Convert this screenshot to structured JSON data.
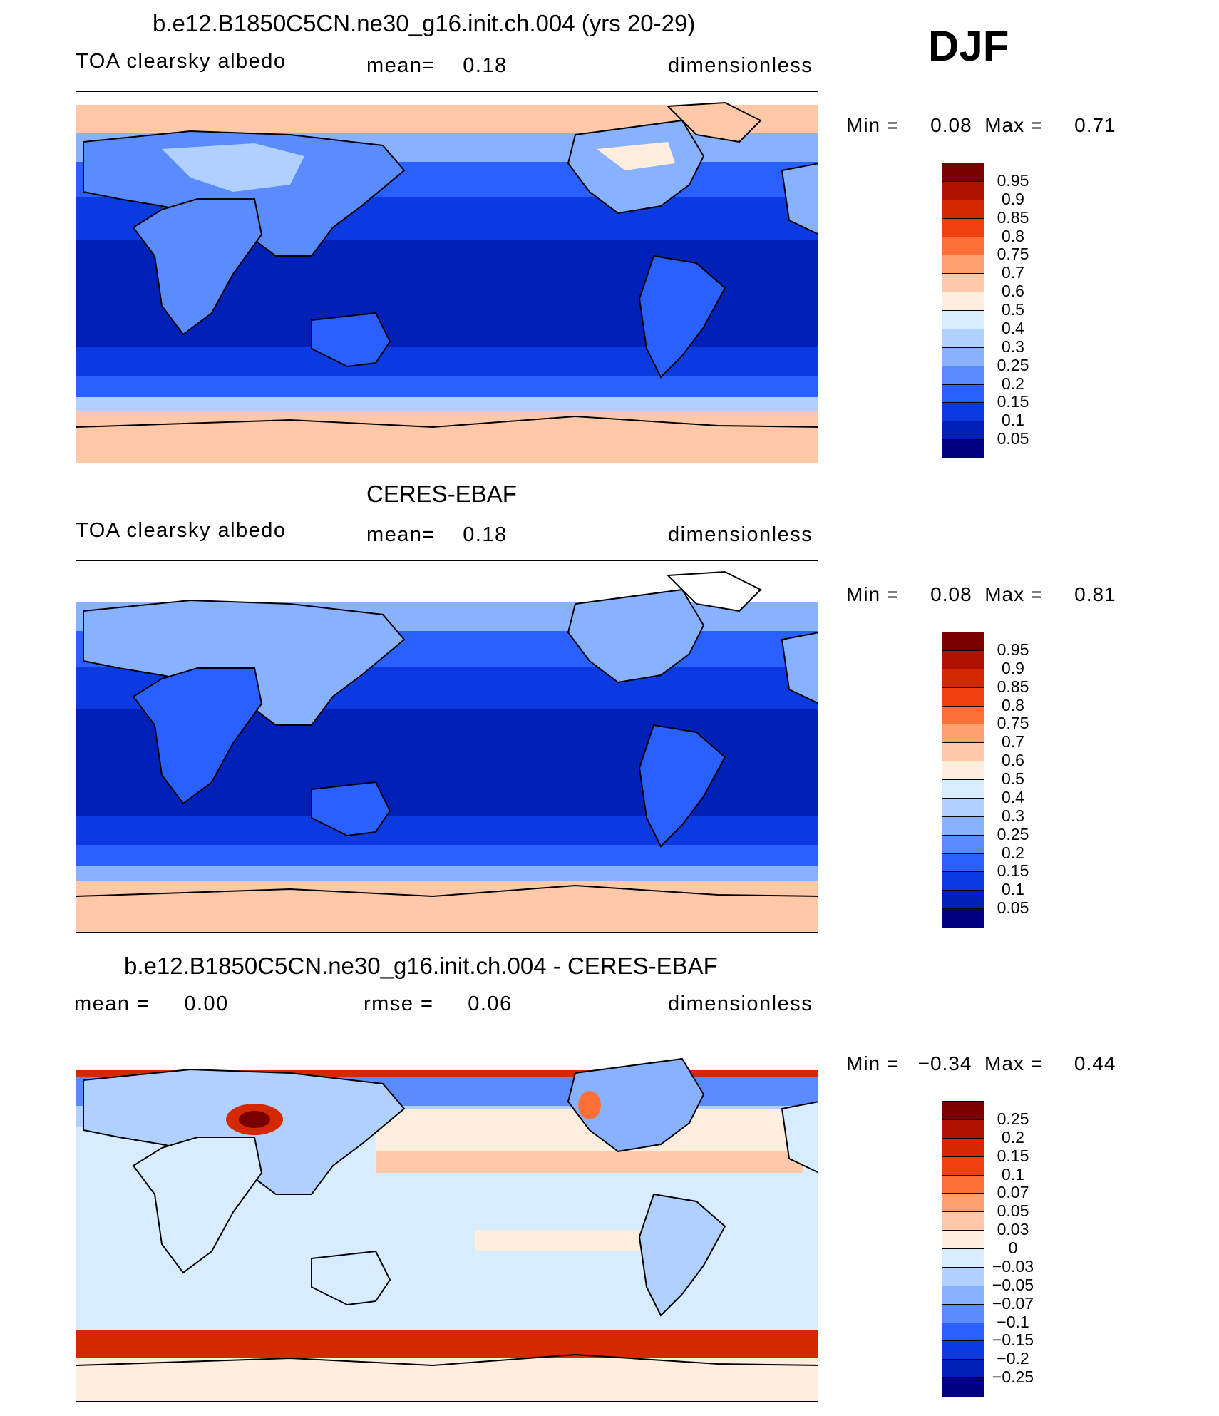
{
  "season": "DJF",
  "panels": [
    {
      "title": "b.e12.B1850C5CN.ne30_g16.init.ch.004 (yrs 20-29)",
      "left_label": "TOA clearsky albedo",
      "center_label": "mean=    0.18",
      "right_label": "dimensionless",
      "minmax": "Min =     0.08  Max =     0.71",
      "colorbar": {
        "labels": [
          "0.95",
          "0.9",
          "0.85",
          "0.8",
          "0.75",
          "0.7",
          "0.6",
          "0.5",
          "0.4",
          "0.3",
          "0.25",
          "0.2",
          "0.15",
          "0.1",
          "0.05"
        ],
        "colors": [
          "#7a0000",
          "#b01200",
          "#d42800",
          "#f04010",
          "#ff7038",
          "#ffa070",
          "#ffc8a8",
          "#ffeedd",
          "#d8ecff",
          "#b0d0ff",
          "#88b2ff",
          "#5a8cff",
          "#2a60ff",
          "#0a3ae0",
          "#0020b8",
          "#000080"
        ]
      }
    },
    {
      "title": "CERES-EBAF",
      "left_label": "TOA clearsky albedo",
      "center_label": "mean=    0.18",
      "right_label": "dimensionless",
      "minmax": "Min =     0.08  Max =     0.81",
      "colorbar": {
        "labels": [
          "0.95",
          "0.9",
          "0.85",
          "0.8",
          "0.75",
          "0.7",
          "0.6",
          "0.5",
          "0.4",
          "0.3",
          "0.25",
          "0.2",
          "0.15",
          "0.1",
          "0.05"
        ],
        "colors": [
          "#7a0000",
          "#b01200",
          "#d42800",
          "#f04010",
          "#ff7038",
          "#ffa070",
          "#ffc8a8",
          "#ffeedd",
          "#d8ecff",
          "#b0d0ff",
          "#88b2ff",
          "#5a8cff",
          "#2a60ff",
          "#0a3ae0",
          "#0020b8",
          "#000080"
        ]
      }
    },
    {
      "title": "b.e12.B1850C5CN.ne30_g16.init.ch.004 - CERES-EBAF",
      "left_label": "mean =     0.00",
      "center_label": "rmse =     0.06",
      "right_label": "dimensionless",
      "minmax": "Min =   −0.34  Max =     0.44",
      "colorbar": {
        "labels": [
          "0.25",
          "0.2",
          "0.15",
          "0.1",
          "0.07",
          "0.05",
          "0.03",
          "0",
          "−0.03",
          "−0.05",
          "−0.07",
          "−0.1",
          "−0.15",
          "−0.2",
          "−0.25"
        ],
        "colors": [
          "#7a0000",
          "#b01200",
          "#d42800",
          "#f04010",
          "#ff7038",
          "#ffa070",
          "#ffc8a8",
          "#ffeedd",
          "#d8ecff",
          "#b0d0ff",
          "#88b2ff",
          "#5a8cff",
          "#2a60ff",
          "#0a3ae0",
          "#0020b8",
          "#000080"
        ]
      }
    }
  ]
}
